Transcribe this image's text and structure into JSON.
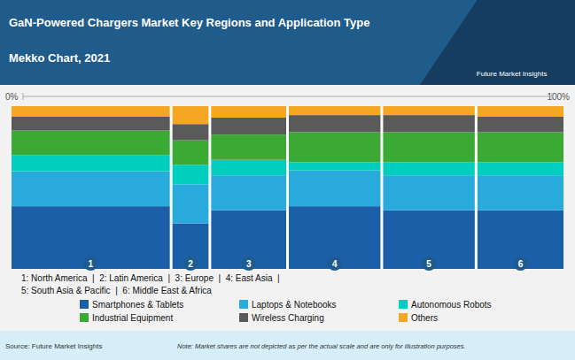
{
  "chart_data": {
    "type": "bar",
    "stacked": true,
    "title": "GaN-Powered Chargers Market Key Regions and Application Type",
    "subtitle": "Mekko Chart, 2021",
    "categories": [
      "1",
      "2",
      "3",
      "4",
      "5",
      "6"
    ],
    "widths": [
      0.285,
      0.065,
      0.135,
      0.165,
      0.165,
      0.155
    ],
    "series": [
      {
        "name": "Smartphones & Tablets",
        "color": "#1a5fa8",
        "values": [
          0.385,
          0.28,
          0.36,
          0.385,
          0.36,
          0.36
        ]
      },
      {
        "name": "Laptops & Notebooks",
        "color": "#29aadc",
        "values": [
          0.215,
          0.24,
          0.215,
          0.22,
          0.215,
          0.215
        ]
      },
      {
        "name": "Autonomous Robots",
        "color": "#00cfc0",
        "values": [
          0.1,
          0.12,
          0.095,
          0.05,
          0.08,
          0.08
        ]
      },
      {
        "name": "Industrial Equipment",
        "color": "#3aaa35",
        "values": [
          0.15,
          0.15,
          0.155,
          0.185,
          0.185,
          0.185
        ]
      },
      {
        "name": "Wireless Charging",
        "color": "#5a5a5a",
        "values": [
          0.085,
          0.1,
          0.105,
          0.105,
          0.105,
          0.095
        ]
      },
      {
        "name": "Others",
        "color": "#f5a623",
        "values": [
          0.065,
          0.11,
          0.07,
          0.055,
          0.055,
          0.065
        ]
      }
    ],
    "ylim": [
      0,
      1
    ],
    "tick_labels": false,
    "legend": "bottom",
    "annotations": [
      "Future Market Insights",
      "0%",
      "100%",
      "1: North America  |  2: Latin America  |  3: Europe  |  4: East Asia  |",
      "5: South Asia & Pacific  |  6: Middle East & Africa",
      "Source: Future Market Insights",
      "Note: Market shares are not depicted as per the actual scale and are only for illustration purposes."
    ]
  }
}
